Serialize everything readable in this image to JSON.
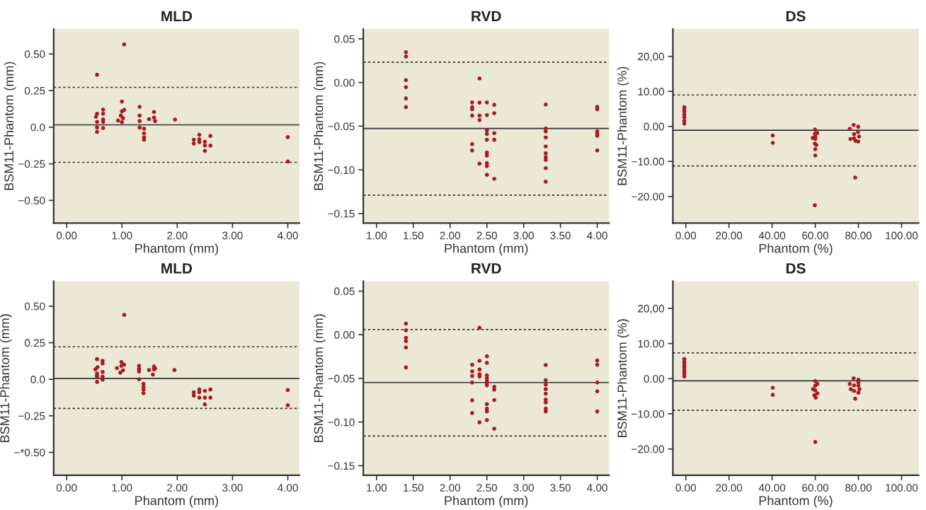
{
  "chart_data": [
    {
      "type": "scatter",
      "title": "MLD",
      "xlabel": "Phantom (mm)",
      "ylabel": "BSM11-Phantom (mm)",
      "marker": "circle",
      "grid": false,
      "color": "#a51c24",
      "x": [
        0.55,
        0.55,
        0.53,
        0.55,
        0.55,
        0.55,
        0.66,
        0.66,
        0.66,
        0.66,
        0.66,
        0.93,
        1.0,
        1.0,
        0.98,
        1.0,
        1.02,
        1.04,
        1.04,
        1.32,
        1.32,
        1.32,
        1.32,
        1.4,
        1.4,
        1.4,
        1.4,
        1.49,
        1.58,
        1.58,
        1.6,
        1.96,
        2.3,
        2.3,
        2.4,
        2.4,
        2.4,
        2.5,
        2.5,
        2.5,
        2.6,
        2.6,
        4.0,
        4.0
      ],
      "values": [
        0.358,
        0.092,
        0.071,
        0.036,
        -0.002,
        -0.032,
        0.12,
        0.092,
        0.053,
        0.036,
        -0.006,
        0.045,
        0.175,
        0.108,
        0.079,
        0.034,
        0.061,
        0.565,
        0.118,
        0.139,
        0.079,
        0.042,
        -0.003,
        -0.01,
        -0.042,
        -0.07,
        -0.086,
        0.055,
        0.104,
        0.066,
        0.042,
        0.052,
        -0.086,
        -0.112,
        -0.052,
        -0.083,
        -0.102,
        -0.099,
        -0.125,
        -0.162,
        -0.06,
        -0.126,
        -0.068,
        -0.235
      ],
      "xlim": [
        -0.234,
        4.21
      ],
      "ylim": [
        -0.655,
        0.67
      ],
      "xticks": [
        {
          "value": 0,
          "label": "0.00"
        },
        {
          "value": 1,
          "label": "1.00"
        },
        {
          "value": 2,
          "label": "2.00"
        },
        {
          "value": 3,
          "label": "3.00"
        },
        {
          "value": 4,
          "label": "4.00"
        }
      ],
      "yticks": [
        {
          "value": -0.5,
          "label": "−0.50"
        },
        {
          "value": -0.25,
          "label": "−0.25"
        },
        {
          "value": 0,
          "label": "0.0"
        },
        {
          "value": 0.25,
          "label": "0.25"
        },
        {
          "value": 0.5,
          "label": "0.50"
        }
      ],
      "ref_lines": [
        {
          "axis": "y",
          "value": 0.272,
          "line_style": "dotted",
          "color": "#333333"
        },
        {
          "axis": "y",
          "value": 0.016,
          "line_style": "solid",
          "color": "#333333"
        },
        {
          "axis": "y",
          "value": -0.24,
          "line_style": "dotted",
          "color": "#333333"
        }
      ]
    },
    {
      "type": "scatter",
      "title": "RVD",
      "xlabel": "Phantom (mm)",
      "ylabel": "BSM11-Phantom (mm)",
      "marker": "circle",
      "grid": false,
      "color": "#a51c24",
      "x": [
        1.4,
        1.4,
        1.4,
        1.4,
        1.4,
        1.4,
        2.3,
        2.3,
        2.3,
        2.3,
        2.3,
        2.3,
        2.4,
        2.4,
        2.4,
        2.4,
        2.4,
        2.5,
        2.5,
        2.5,
        2.5,
        2.5,
        2.5,
        2.5,
        2.5,
        2.5,
        2.5,
        2.6,
        2.6,
        2.6,
        2.6,
        2.6,
        3.3,
        3.3,
        3.3,
        3.3,
        3.3,
        3.3,
        3.3,
        3.3,
        3.3,
        3.3,
        4.0,
        4.0,
        4.0,
        4.0,
        4.0,
        4.0
      ],
      "values": [
        0.0347,
        0.0298,
        0.0027,
        -0.0054,
        -0.0182,
        -0.0282,
        -0.0228,
        -0.0282,
        -0.0306,
        -0.0379,
        -0.0705,
        -0.0778,
        0.0046,
        -0.023,
        -0.0379,
        -0.0431,
        -0.093,
        -0.0228,
        -0.0374,
        -0.055,
        -0.059,
        -0.0656,
        -0.0802,
        -0.0837,
        -0.0924,
        -0.0957,
        -0.1057,
        -0.0255,
        -0.0352,
        -0.058,
        -0.0656,
        -0.1103,
        -0.0252,
        -0.0526,
        -0.056,
        -0.0629,
        -0.0732,
        -0.081,
        -0.0854,
        -0.0886,
        -0.0981,
        -0.1136,
        -0.0279,
        -0.0306,
        -0.056,
        -0.0588,
        -0.061,
        -0.0778
      ],
      "xlim": [
        0.82,
        4.16
      ],
      "ylim": [
        -0.161,
        0.0612
      ],
      "xticks": [
        {
          "value": 1,
          "label": "1.00"
        },
        {
          "value": 1.5,
          "label": "1.50"
        },
        {
          "value": 2,
          "label": "2.00"
        },
        {
          "value": 2.5,
          "label": "2.50"
        },
        {
          "value": 3,
          "label": "3.00"
        },
        {
          "value": 3.5,
          "label": "3.50"
        },
        {
          "value": 4,
          "label": "4.00"
        }
      ],
      "yticks": [
        {
          "value": -0.15,
          "label": "−0.15"
        },
        {
          "value": -0.1,
          "label": "−0.10"
        },
        {
          "value": -0.05,
          "label": "−0.05"
        },
        {
          "value": 0,
          "label": "0.00"
        },
        {
          "value": 0.05,
          "label": "0.05"
        }
      ],
      "ref_lines": [
        {
          "axis": "y",
          "value": 0.0233,
          "line_style": "dotted",
          "color": "#333333"
        },
        {
          "axis": "y",
          "value": -0.0526,
          "line_style": "solid",
          "color": "#333333"
        },
        {
          "axis": "y",
          "value": -0.129,
          "line_style": "dotted",
          "color": "#333333"
        }
      ]
    },
    {
      "type": "scatter",
      "title": "DS",
      "xlabel": "Phantom (%)",
      "ylabel": "BSM11-Phantom (%)",
      "marker": "circle",
      "grid": false,
      "color": "#a51c24",
      "x": [
        -0.7,
        -0.7,
        -0.7,
        -0.7,
        -0.7,
        -0.7,
        -0.7,
        40.3,
        40.3,
        59.9,
        60.9,
        59.9,
        60.0,
        58.8,
        60.0,
        59.8,
        60.5,
        60.0,
        60.0,
        59.8,
        76.0,
        76.3,
        77.8,
        78.0,
        78.0,
        78.6,
        78.5,
        79.9,
        79.8,
        80.3,
        79.9
      ],
      "values": [
        0.8,
        1.6,
        2.6,
        3.4,
        4.2,
        4.9,
        5.5,
        -2.6,
        -4.7,
        -0.9,
        -1.9,
        -2.1,
        -2.9,
        -3.3,
        -3.6,
        -4.9,
        -5.3,
        -6.5,
        -8.3,
        -22.5,
        -0.7,
        -3.6,
        0.4,
        -2.2,
        -3.4,
        -4.1,
        -14.6,
        -0.1,
        -1.6,
        -2.9,
        -4.3
      ],
      "xlim": [
        -6.0,
        107.9
      ],
      "ylim": [
        -27.6,
        27.8
      ],
      "xticks": [
        {
          "value": 0,
          "label": "0.00"
        },
        {
          "value": 20,
          "label": "20.00"
        },
        {
          "value": 40,
          "label": "40.00"
        },
        {
          "value": 60,
          "label": "60.00"
        },
        {
          "value": 80,
          "label": "80.00"
        },
        {
          "value": 100,
          "label": "100.00"
        }
      ],
      "yticks": [
        {
          "value": -20,
          "label": "−20.00"
        },
        {
          "value": -10,
          "label": "−10.00"
        },
        {
          "value": 0,
          "label": "0.00"
        },
        {
          "value": 10,
          "label": "10.00"
        },
        {
          "value": 20,
          "label": "20,00"
        }
      ],
      "ref_lines": [
        {
          "axis": "y",
          "value": 8.99,
          "line_style": "dotted",
          "color": "#333333"
        },
        {
          "axis": "y",
          "value": -1.08,
          "line_style": "solid",
          "color": "#333333"
        },
        {
          "axis": "y",
          "value": -11.28,
          "line_style": "dotted",
          "color": "#333333"
        }
      ]
    },
    {
      "type": "scatter",
      "title": "MLD",
      "xlabel": "Phantom (mm)",
      "ylabel": "BSM11-Phantom (mm)",
      "marker": "circle",
      "grid": false,
      "color": "#a51c24",
      "x": [
        0.52,
        0.55,
        0.55,
        0.55,
        0.55,
        0.56,
        0.55,
        0.65,
        0.65,
        0.65,
        0.65,
        0.65,
        0.91,
        0.97,
        0.99,
        0.99,
        1.02,
        1.04,
        1.04,
        1.31,
        1.31,
        1.31,
        1.31,
        1.39,
        1.39,
        1.39,
        1.39,
        1.49,
        1.56,
        1.58,
        1.58,
        1.6,
        1.95,
        2.3,
        2.3,
        2.4,
        2.4,
        2.4,
        2.5,
        2.5,
        2.5,
        2.6,
        2.6,
        4.0,
        4.0
      ],
      "values": [
        0.068,
        0.138,
        0.039,
        0.019,
        -0.018,
        0.083,
        0.026,
        0.126,
        0.108,
        0.05,
        0.019,
        -0.003,
        0.076,
        0.045,
        0.118,
        0.092,
        0.061,
        0.44,
        0.1,
        0.092,
        0.071,
        0.053,
        0.0,
        -0.031,
        -0.052,
        -0.071,
        -0.095,
        0.063,
        0.032,
        0.087,
        0.068,
        0.073,
        0.063,
        -0.089,
        -0.112,
        -0.07,
        -0.089,
        -0.126,
        -0.079,
        -0.126,
        -0.172,
        -0.07,
        -0.126,
        -0.074,
        -0.178
      ],
      "xlim": [
        -0.234,
        4.21
      ],
      "ylim": [
        -0.657,
        0.67
      ],
      "xticks": [
        {
          "value": 0,
          "label": "0.00"
        },
        {
          "value": 1,
          "label": "1.00"
        },
        {
          "value": 2,
          "label": "2.00"
        },
        {
          "value": 3,
          "label": "3.00"
        },
        {
          "value": 4,
          "label": "4.00"
        }
      ],
      "yticks": [
        {
          "value": -0.5,
          "label": "−*0.50"
        },
        {
          "value": -0.25,
          "label": "−0.25"
        },
        {
          "value": 0,
          "label": "0.0"
        },
        {
          "value": 0.25,
          "label": "0.25"
        },
        {
          "value": 0.5,
          "label": "0.50"
        }
      ],
      "ref_lines": [
        {
          "axis": "y",
          "value": 0.222,
          "line_style": "dotted",
          "color": "#333333"
        },
        {
          "axis": "y",
          "value": 0.005,
          "line_style": "solid",
          "color": "#333333"
        },
        {
          "axis": "y",
          "value": -0.199,
          "line_style": "dotted",
          "color": "#333333"
        }
      ]
    },
    {
      "type": "scatter",
      "title": "RVD",
      "xlabel": "Phantom (mm)",
      "ylabel": "BSM11-Phantom (mm)",
      "marker": "circle",
      "grid": false,
      "color": "#a51c24",
      "x": [
        1.4,
        1.4,
        1.4,
        1.4,
        1.4,
        1.4,
        2.3,
        2.3,
        2.3,
        2.3,
        2.3,
        2.3,
        2.4,
        2.4,
        2.4,
        2.4,
        2.4,
        2.4,
        2.5,
        2.5,
        2.5,
        2.5,
        2.5,
        2.5,
        2.5,
        2.5,
        2.5,
        2.5,
        2.5,
        2.6,
        2.6,
        2.6,
        2.6,
        3.3,
        3.3,
        3.3,
        3.3,
        3.3,
        3.3,
        3.3,
        3.3,
        3.3,
        4.0,
        4.0,
        4.0,
        4.0,
        4.0
      ],
      "values": [
        0.0127,
        0.0051,
        -0.0035,
        -0.0073,
        -0.0146,
        -0.0374,
        -0.0344,
        -0.042,
        -0.0472,
        -0.0547,
        -0.0751,
        -0.0897,
        0.0079,
        -0.0298,
        -0.0398,
        -0.0453,
        -0.0477,
        -0.1003,
        -0.0247,
        -0.0322,
        -0.0466,
        -0.0499,
        -0.053,
        -0.0556,
        -0.058,
        -0.0794,
        -0.0846,
        -0.0878,
        -0.0978,
        -0.0596,
        -0.0629,
        -0.0748,
        -0.1076,
        -0.0347,
        -0.052,
        -0.0572,
        -0.0623,
        -0.0675,
        -0.0743,
        -0.0775,
        -0.0846,
        -0.0878,
        -0.0295,
        -0.0344,
        -0.0547,
        -0.0648,
        -0.0878
      ],
      "xlim": [
        0.82,
        4.16
      ],
      "ylim": [
        -0.161,
        0.0612
      ],
      "xticks": [
        {
          "value": 1,
          "label": "1.00"
        },
        {
          "value": 1.5,
          "label": "1.50"
        },
        {
          "value": 2,
          "label": "2.00"
        },
        {
          "value": 2.5,
          "label": "2.50"
        },
        {
          "value": 3,
          "label": "3.00"
        },
        {
          "value": 3.5,
          "label": "3.50"
        },
        {
          "value": 4,
          "label": "4.00"
        }
      ],
      "yticks": [
        {
          "value": -0.15,
          "label": "−0.15"
        },
        {
          "value": -0.1,
          "label": "−0.10"
        },
        {
          "value": -0.05,
          "label": "−0.05"
        },
        {
          "value": 0,
          "label": "0.00"
        },
        {
          "value": 0.05,
          "label": "0.05"
        }
      ],
      "ref_lines": [
        {
          "axis": "y",
          "value": 0.006,
          "line_style": "dotted",
          "color": "#333333"
        },
        {
          "axis": "y",
          "value": -0.0547,
          "line_style": "solid",
          "color": "#333333"
        },
        {
          "axis": "y",
          "value": -0.116,
          "line_style": "dotted",
          "color": "#333333"
        }
      ]
    },
    {
      "type": "scatter",
      "title": "DS",
      "xlabel": "Phantom (%)",
      "ylabel": "BSM11-Phantom (%)",
      "marker": "circle",
      "grid": false,
      "color": "#a51c24",
      "x": [
        -0.7,
        -0.7,
        -0.7,
        -0.7,
        -0.7,
        -0.7,
        -0.7,
        -0.7,
        40.3,
        40.3,
        60.0,
        61.0,
        60.0,
        59.0,
        60.0,
        61.0,
        59.6,
        60.2,
        60.0,
        76.0,
        76.5,
        77.8,
        78.0,
        78.0,
        78.5,
        80.0,
        80.0,
        80.0,
        80.5,
        80.0
      ],
      "values": [
        0.6,
        1.3,
        2.0,
        2.7,
        3.4,
        4.1,
        4.8,
        5.6,
        -2.6,
        -4.6,
        -0.7,
        -1.5,
        -2.0,
        -3.0,
        -3.3,
        -4.2,
        -4.7,
        -5.4,
        -18.0,
        -1.5,
        -3.0,
        0.1,
        -1.9,
        -3.5,
        -5.7,
        -0.3,
        -1.1,
        -2.0,
        -3.0,
        -4.0
      ],
      "xlim": [
        -6.0,
        107.9
      ],
      "ylim": [
        -27.5,
        27.7
      ],
      "xticks": [
        {
          "value": 0,
          "label": "0.00"
        },
        {
          "value": 20,
          "label": "20.00"
        },
        {
          "value": 40,
          "label": "40.00"
        },
        {
          "value": 60,
          "label": "60.00"
        },
        {
          "value": 80,
          "label": "80.00"
        },
        {
          "value": 100,
          "label": "100.00"
        }
      ],
      "yticks": [
        {
          "value": -20,
          "label": "−20.00"
        },
        {
          "value": -10,
          "label": "−10.00"
        },
        {
          "value": 0,
          "label": "0.00"
        },
        {
          "value": 10,
          "label": "10.00"
        },
        {
          "value": 20,
          "label": "20,00"
        }
      ],
      "ref_lines": [
        {
          "axis": "y",
          "value": 7.34,
          "line_style": "dotted",
          "color": "#333333"
        },
        {
          "axis": "y",
          "value": -0.6,
          "line_style": "solid",
          "color": "#333333"
        },
        {
          "axis": "y",
          "value": -9.0,
          "line_style": "dotted",
          "color": "#333333"
        }
      ]
    }
  ]
}
